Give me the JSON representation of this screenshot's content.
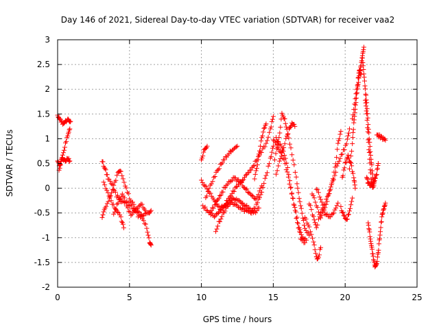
{
  "chart_data": {
    "type": "scatter",
    "title": "Day 146 of 2021, Sidereal Day-to-day VTEC variation (SDTVAR) for receiver vaa2",
    "xlabel": "GPS time / hours",
    "ylabel": "SDTVAR / TECUs",
    "xlim": [
      0,
      25
    ],
    "ylim": [
      -2,
      3
    ],
    "xticks": [
      "0",
      "5",
      "10",
      "15",
      "20",
      "25"
    ],
    "yticks": [
      "-2",
      "-1.5",
      "-1",
      "-0.5",
      "0",
      "0.5",
      "1",
      "1.5",
      "2",
      "2.5",
      "3"
    ],
    "grid": true,
    "marker": "+",
    "series": [
      {
        "name": "SDTVAR",
        "color": "#ff0000",
        "tracks": [
          [
            [
              0.0,
              1.45
            ],
            [
              0.15,
              1.4
            ],
            [
              0.35,
              1.3
            ],
            [
              0.55,
              1.35
            ],
            [
              0.75,
              1.4
            ],
            [
              0.9,
              1.35
            ]
          ],
          [
            [
              0.0,
              0.55
            ],
            [
              0.15,
              0.45
            ],
            [
              0.3,
              0.6
            ],
            [
              0.5,
              0.55
            ],
            [
              0.7,
              0.6
            ],
            [
              0.85,
              0.55
            ]
          ],
          [
            [
              0.1,
              0.35
            ],
            [
              0.3,
              0.6
            ],
            [
              0.5,
              0.85
            ],
            [
              0.7,
              1.05
            ],
            [
              0.85,
              1.2
            ]
          ],
          [
            [
              3.1,
              0.55
            ],
            [
              3.3,
              0.4
            ],
            [
              3.5,
              0.2
            ],
            [
              3.8,
              0.05
            ],
            [
              4.1,
              -0.15
            ],
            [
              4.4,
              -0.25
            ],
            [
              4.8,
              -0.3
            ],
            [
              5.2,
              -0.4
            ],
            [
              5.6,
              -0.5
            ],
            [
              6.0,
              -0.55
            ],
            [
              6.3,
              -0.5
            ],
            [
              6.5,
              -0.45
            ]
          ],
          [
            [
              3.1,
              -0.6
            ],
            [
              3.3,
              -0.4
            ],
            [
              3.6,
              -0.2
            ],
            [
              3.9,
              0.05
            ],
            [
              4.2,
              0.3
            ],
            [
              4.4,
              0.35
            ],
            [
              4.7,
              0.05
            ],
            [
              5.0,
              -0.2
            ],
            [
              5.3,
              -0.35
            ],
            [
              5.6,
              -0.55
            ],
            [
              5.9,
              -0.6
            ],
            [
              6.2,
              -0.8
            ],
            [
              6.4,
              -1.1
            ],
            [
              6.5,
              -1.15
            ]
          ],
          [
            [
              3.2,
              0.1
            ],
            [
              3.5,
              -0.1
            ],
            [
              3.8,
              -0.3
            ],
            [
              4.1,
              -0.45
            ],
            [
              4.4,
              -0.6
            ],
            [
              4.6,
              -0.8
            ]
          ],
          [
            [
              3.9,
              -0.5
            ],
            [
              4.2,
              -0.3
            ],
            [
              4.5,
              -0.1
            ],
            [
              4.8,
              -0.35
            ],
            [
              5.1,
              -0.55
            ],
            [
              5.4,
              -0.45
            ],
            [
              5.8,
              -0.3
            ],
            [
              6.1,
              -0.45
            ]
          ],
          [
            [
              10.0,
              0.6
            ],
            [
              10.2,
              0.75
            ],
            [
              10.4,
              0.85
            ]
          ],
          [
            [
              10.0,
              0.15
            ],
            [
              10.4,
              0.0
            ],
            [
              10.8,
              -0.2
            ],
            [
              11.3,
              -0.4
            ],
            [
              11.8,
              -0.3
            ],
            [
              12.3,
              -0.2
            ],
            [
              12.8,
              -0.3
            ],
            [
              13.3,
              -0.4
            ],
            [
              13.7,
              -0.5
            ],
            [
              14.0,
              -0.4
            ]
          ],
          [
            [
              10.1,
              -0.35
            ],
            [
              10.5,
              -0.5
            ],
            [
              10.9,
              -0.55
            ],
            [
              11.4,
              -0.45
            ],
            [
              11.9,
              -0.2
            ],
            [
              12.5,
              0.05
            ],
            [
              13.0,
              0.2
            ],
            [
              13.6,
              0.45
            ],
            [
              14.1,
              0.7
            ],
            [
              14.5,
              0.9
            ],
            [
              14.8,
              1.2
            ],
            [
              15.0,
              1.45
            ]
          ],
          [
            [
              10.3,
              -0.2
            ],
            [
              10.7,
              0.1
            ],
            [
              11.1,
              0.35
            ],
            [
              11.6,
              0.6
            ],
            [
              12.0,
              0.75
            ],
            [
              12.5,
              0.85
            ]
          ],
          [
            [
              10.6,
              -0.5
            ],
            [
              11.0,
              -0.3
            ],
            [
              11.5,
              -0.05
            ],
            [
              11.9,
              0.15
            ],
            [
              12.3,
              0.2
            ],
            [
              12.8,
              0.1
            ],
            [
              13.3,
              -0.1
            ],
            [
              13.8,
              -0.2
            ],
            [
              14.2,
              0.05
            ]
          ],
          [
            [
              11.0,
              -0.85
            ],
            [
              11.5,
              -0.5
            ],
            [
              12.0,
              -0.3
            ],
            [
              12.5,
              -0.35
            ],
            [
              13.0,
              -0.45
            ],
            [
              13.5,
              -0.5
            ],
            [
              13.9,
              -0.3
            ],
            [
              14.2,
              -0.05
            ],
            [
              14.5,
              0.25
            ],
            [
              14.8,
              0.6
            ],
            [
              15.0,
              0.85
            ]
          ],
          [
            [
              13.7,
              0.2
            ],
            [
              13.9,
              0.5
            ],
            [
              14.1,
              0.85
            ],
            [
              14.3,
              1.15
            ],
            [
              14.5,
              1.3
            ]
          ],
          [
            [
              15.0,
              1.0
            ],
            [
              15.3,
              0.8
            ],
            [
              15.6,
              0.7
            ],
            [
              15.9,
              0.4
            ],
            [
              16.2,
              0.0
            ],
            [
              16.5,
              -0.4
            ],
            [
              16.8,
              -0.8
            ],
            [
              17.0,
              -1.0
            ],
            [
              17.3,
              -1.05
            ]
          ],
          [
            [
              15.1,
              0.6
            ],
            [
              15.4,
              1.0
            ],
            [
              15.6,
              1.5
            ],
            [
              15.8,
              1.4
            ],
            [
              16.0,
              1.1
            ],
            [
              16.3,
              0.7
            ],
            [
              16.6,
              0.2
            ],
            [
              16.8,
              -0.2
            ],
            [
              17.0,
              -0.5
            ],
            [
              17.2,
              -0.8
            ],
            [
              17.5,
              -0.95
            ]
          ],
          [
            [
              15.2,
              1.0
            ],
            [
              15.4,
              0.9
            ],
            [
              15.7,
              0.75
            ],
            [
              16.0,
              0.4
            ],
            [
              16.3,
              -0.1
            ],
            [
              16.6,
              -0.6
            ],
            [
              16.9,
              -1.0
            ],
            [
              17.2,
              -1.1
            ]
          ],
          [
            [
              15.2,
              0.3
            ],
            [
              15.5,
              0.6
            ],
            [
              15.8,
              0.9
            ],
            [
              16.1,
              1.2
            ],
            [
              16.3,
              1.3
            ],
            [
              16.5,
              1.25
            ]
          ],
          [
            [
              17.2,
              -0.6
            ],
            [
              17.5,
              -0.8
            ],
            [
              17.8,
              -1.1
            ],
            [
              18.0,
              -1.4
            ],
            [
              18.1,
              -1.45
            ],
            [
              18.3,
              -1.2
            ]
          ],
          [
            [
              17.5,
              -0.3
            ],
            [
              17.8,
              -0.6
            ],
            [
              18.0,
              -0.8
            ],
            [
              18.3,
              -0.5
            ],
            [
              18.6,
              -0.3
            ],
            [
              19.0,
              0.0
            ],
            [
              19.3,
              0.4
            ],
            [
              19.5,
              0.9
            ],
            [
              19.7,
              1.15
            ]
          ],
          [
            [
              17.7,
              -0.1
            ],
            [
              18.0,
              -0.35
            ],
            [
              18.3,
              -0.6
            ],
            [
              18.6,
              -0.4
            ],
            [
              18.9,
              -0.1
            ],
            [
              19.2,
              0.2
            ],
            [
              19.5,
              0.5
            ],
            [
              19.8,
              0.7
            ],
            [
              20.1,
              0.9
            ],
            [
              20.3,
              1.2
            ]
          ],
          [
            [
              18.0,
              0.0
            ],
            [
              18.3,
              -0.2
            ],
            [
              18.6,
              -0.5
            ],
            [
              18.9,
              -0.6
            ],
            [
              19.2,
              -0.5
            ],
            [
              19.5,
              -0.3
            ]
          ],
          [
            [
              19.8,
              0.2
            ],
            [
              20.0,
              0.5
            ],
            [
              20.2,
              0.65
            ],
            [
              20.4,
              0.5
            ],
            [
              20.6,
              0.2
            ],
            [
              20.7,
              0.0
            ]
          ],
          [
            [
              19.7,
              -0.4
            ],
            [
              19.9,
              -0.55
            ],
            [
              20.1,
              -0.65
            ],
            [
              20.3,
              -0.45
            ],
            [
              20.5,
              -0.2
            ]
          ],
          [
            [
              20.3,
              0.4
            ],
            [
              20.5,
              0.9
            ],
            [
              20.6,
              1.3
            ],
            [
              20.7,
              1.6
            ],
            [
              20.8,
              1.9
            ],
            [
              20.9,
              2.1
            ],
            [
              21.0,
              2.3
            ],
            [
              21.1,
              2.5
            ],
            [
              21.2,
              2.7
            ],
            [
              21.3,
              2.85
            ]
          ],
          [
            [
              20.5,
              1.4
            ],
            [
              20.7,
              1.8
            ],
            [
              20.9,
              2.2
            ],
            [
              21.0,
              2.4
            ],
            [
              21.1,
              2.3
            ]
          ],
          [
            [
              21.2,
              2.6
            ],
            [
              21.3,
              2.3
            ],
            [
              21.4,
              2.0
            ],
            [
              21.5,
              1.7
            ],
            [
              21.6,
              1.3
            ],
            [
              21.7,
              0.9
            ],
            [
              21.8,
              0.6
            ],
            [
              21.9,
              0.3
            ],
            [
              22.0,
              0.05
            ]
          ],
          [
            [
              21.4,
              1.8
            ],
            [
              21.5,
              1.5
            ],
            [
              21.6,
              1.0
            ],
            [
              21.7,
              0.6
            ],
            [
              21.8,
              0.2
            ],
            [
              21.9,
              0.0
            ],
            [
              22.0,
              0.1
            ],
            [
              22.1,
              0.2
            ]
          ],
          [
            [
              21.6,
              -0.7
            ],
            [
              21.7,
              -0.9
            ],
            [
              21.8,
              -1.1
            ],
            [
              21.9,
              -1.3
            ],
            [
              22.0,
              -1.5
            ],
            [
              22.1,
              -1.6
            ],
            [
              22.2,
              -1.5
            ],
            [
              22.3,
              -1.3
            ],
            [
              22.4,
              -1.0
            ],
            [
              22.5,
              -0.7
            ],
            [
              22.6,
              -0.5
            ],
            [
              22.7,
              -0.4
            ],
            [
              22.8,
              -0.3
            ]
          ],
          [
            [
              21.5,
              0.2
            ],
            [
              21.6,
              0.1
            ],
            [
              21.8,
              0.05
            ],
            [
              22.0,
              0.15
            ],
            [
              22.2,
              0.3
            ],
            [
              22.3,
              0.5
            ]
          ],
          [
            [
              22.2,
              1.1
            ],
            [
              22.4,
              1.05
            ],
            [
              22.6,
              1.0
            ],
            [
              22.8,
              0.97
            ]
          ]
        ]
      }
    ]
  }
}
